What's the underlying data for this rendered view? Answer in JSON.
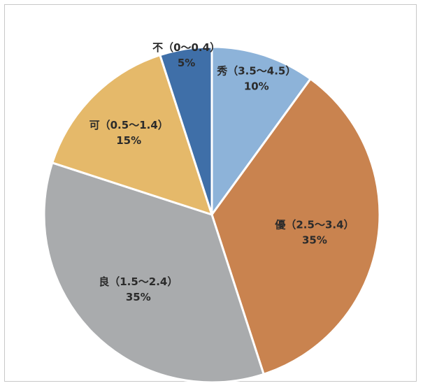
{
  "chart_data": {
    "type": "pie",
    "slices": [
      {
        "label": "秀（3.5～4.5）",
        "value": 10,
        "pct_label": "10%",
        "color": "#8db3d9"
      },
      {
        "label": "優（2.5～3.4）",
        "value": 35,
        "pct_label": "35%",
        "color": "#c9834f"
      },
      {
        "label": "良（1.5～2.4）",
        "value": 35,
        "pct_label": "35%",
        "color": "#a9abad"
      },
      {
        "label": "可（0.5～1.4）",
        "value": 15,
        "pct_label": "15%",
        "color": "#e5b96a"
      },
      {
        "label": "不（0～0.4）",
        "value": 5,
        "pct_label": "5%",
        "color": "#3f6fa8"
      }
    ],
    "start": "12 o'clock",
    "direction": "clockwise",
    "legend": "none",
    "slice_border_color": "#ffffff"
  }
}
